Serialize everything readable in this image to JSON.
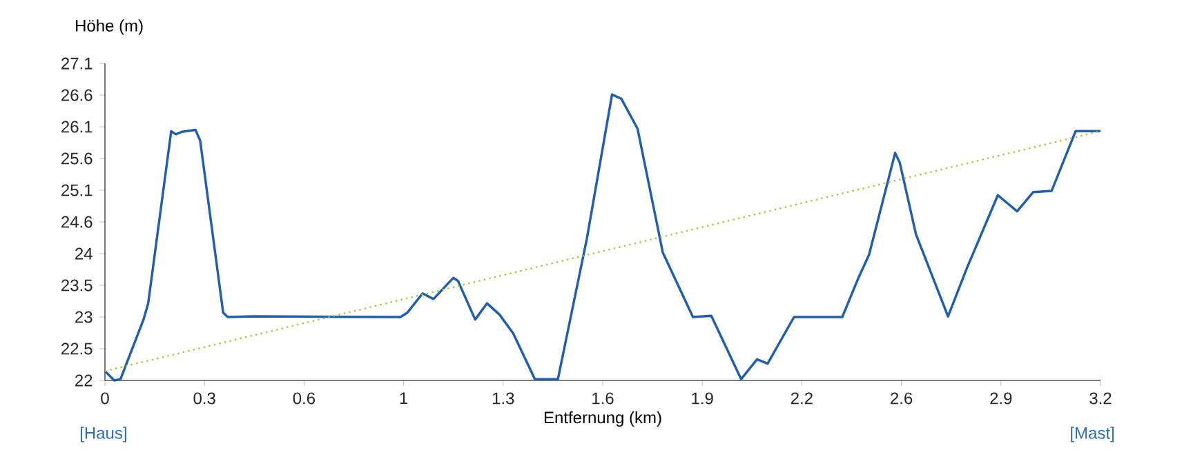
{
  "chart_data": {
    "type": "line",
    "xlabel": "Entfernung (km)",
    "ylabel": "Höhe (m)",
    "xlim": [
      0,
      3.2
    ],
    "ylim": [
      22,
      27.1
    ],
    "xticks": [
      0,
      {
        "value": 0.32,
        "label": "0.3"
      },
      {
        "value": 0.64,
        "label": "0.6"
      },
      {
        "value": 0.96,
        "label": "1"
      },
      {
        "value": 1.28,
        "label": "1.3"
      },
      1.6,
      {
        "value": 1.92,
        "label": "1.9"
      },
      {
        "value": 2.24,
        "label": "2.2"
      },
      {
        "value": 2.56,
        "label": "2.6"
      },
      {
        "value": 2.88,
        "label": "2.9"
      },
      3.2
    ],
    "yticks": [
      22,
      {
        "value": 22.51,
        "label": "22.5"
      },
      {
        "value": 23.02,
        "label": "23"
      },
      {
        "value": 23.53,
        "label": "23.5"
      },
      {
        "value": 24.04,
        "label": "24"
      },
      {
        "value": 24.55,
        "label": "24.6"
      },
      {
        "value": 25.06,
        "label": "25.1"
      },
      {
        "value": 25.57,
        "label": "25.6"
      },
      {
        "value": 26.08,
        "label": "26.1"
      },
      {
        "value": 26.59,
        "label": "26.6"
      },
      27.1
    ],
    "grid": false,
    "marker": "none",
    "annotations": [
      "[Haus]",
      "[Mast]"
    ],
    "series": [
      {
        "color": "#1f5fad",
        "line_style": "solid",
        "x": [
          0,
          0.03,
          0.05,
          0.124,
          0.139,
          0.213,
          0.228,
          0.247,
          0.291,
          0.306,
          0.38,
          0.395,
          0.476,
          0.95,
          0.972,
          1.021,
          1.056,
          1.12,
          1.135,
          1.19,
          1.228,
          1.268,
          1.312,
          1.382,
          1.456,
          1.549,
          1.63,
          1.66,
          1.712,
          1.793,
          1.89,
          1.949,
          2.045,
          2.096,
          2.13,
          2.215,
          2.37,
          2.422,
          2.456,
          2.54,
          2.555,
          2.607,
          2.71,
          2.77,
          2.87,
          2.932,
          2.984,
          3.043,
          3.12,
          3.2
        ],
        "values": [
          22.15,
          22.0,
          22.02,
          22.98,
          23.24,
          26.01,
          25.96,
          26.0,
          26.03,
          25.86,
          23.09,
          23.02,
          23.03,
          23.02,
          23.09,
          23.4,
          23.31,
          23.65,
          23.6,
          22.98,
          23.24,
          23.06,
          22.76,
          22.02,
          22.02,
          24.28,
          26.6,
          26.53,
          26.05,
          24.06,
          23.02,
          23.04,
          22.02,
          22.34,
          22.27,
          23.02,
          23.02,
          23.65,
          24.02,
          25.66,
          25.5,
          24.35,
          23.03,
          23.8,
          24.98,
          24.72,
          25.03,
          25.05,
          26.01,
          26.01
        ]
      },
      {
        "color": "#9acd32",
        "line_style": "dotted",
        "x": [
          0,
          3.2
        ],
        "values": [
          22.15,
          26.01
        ]
      }
    ]
  }
}
